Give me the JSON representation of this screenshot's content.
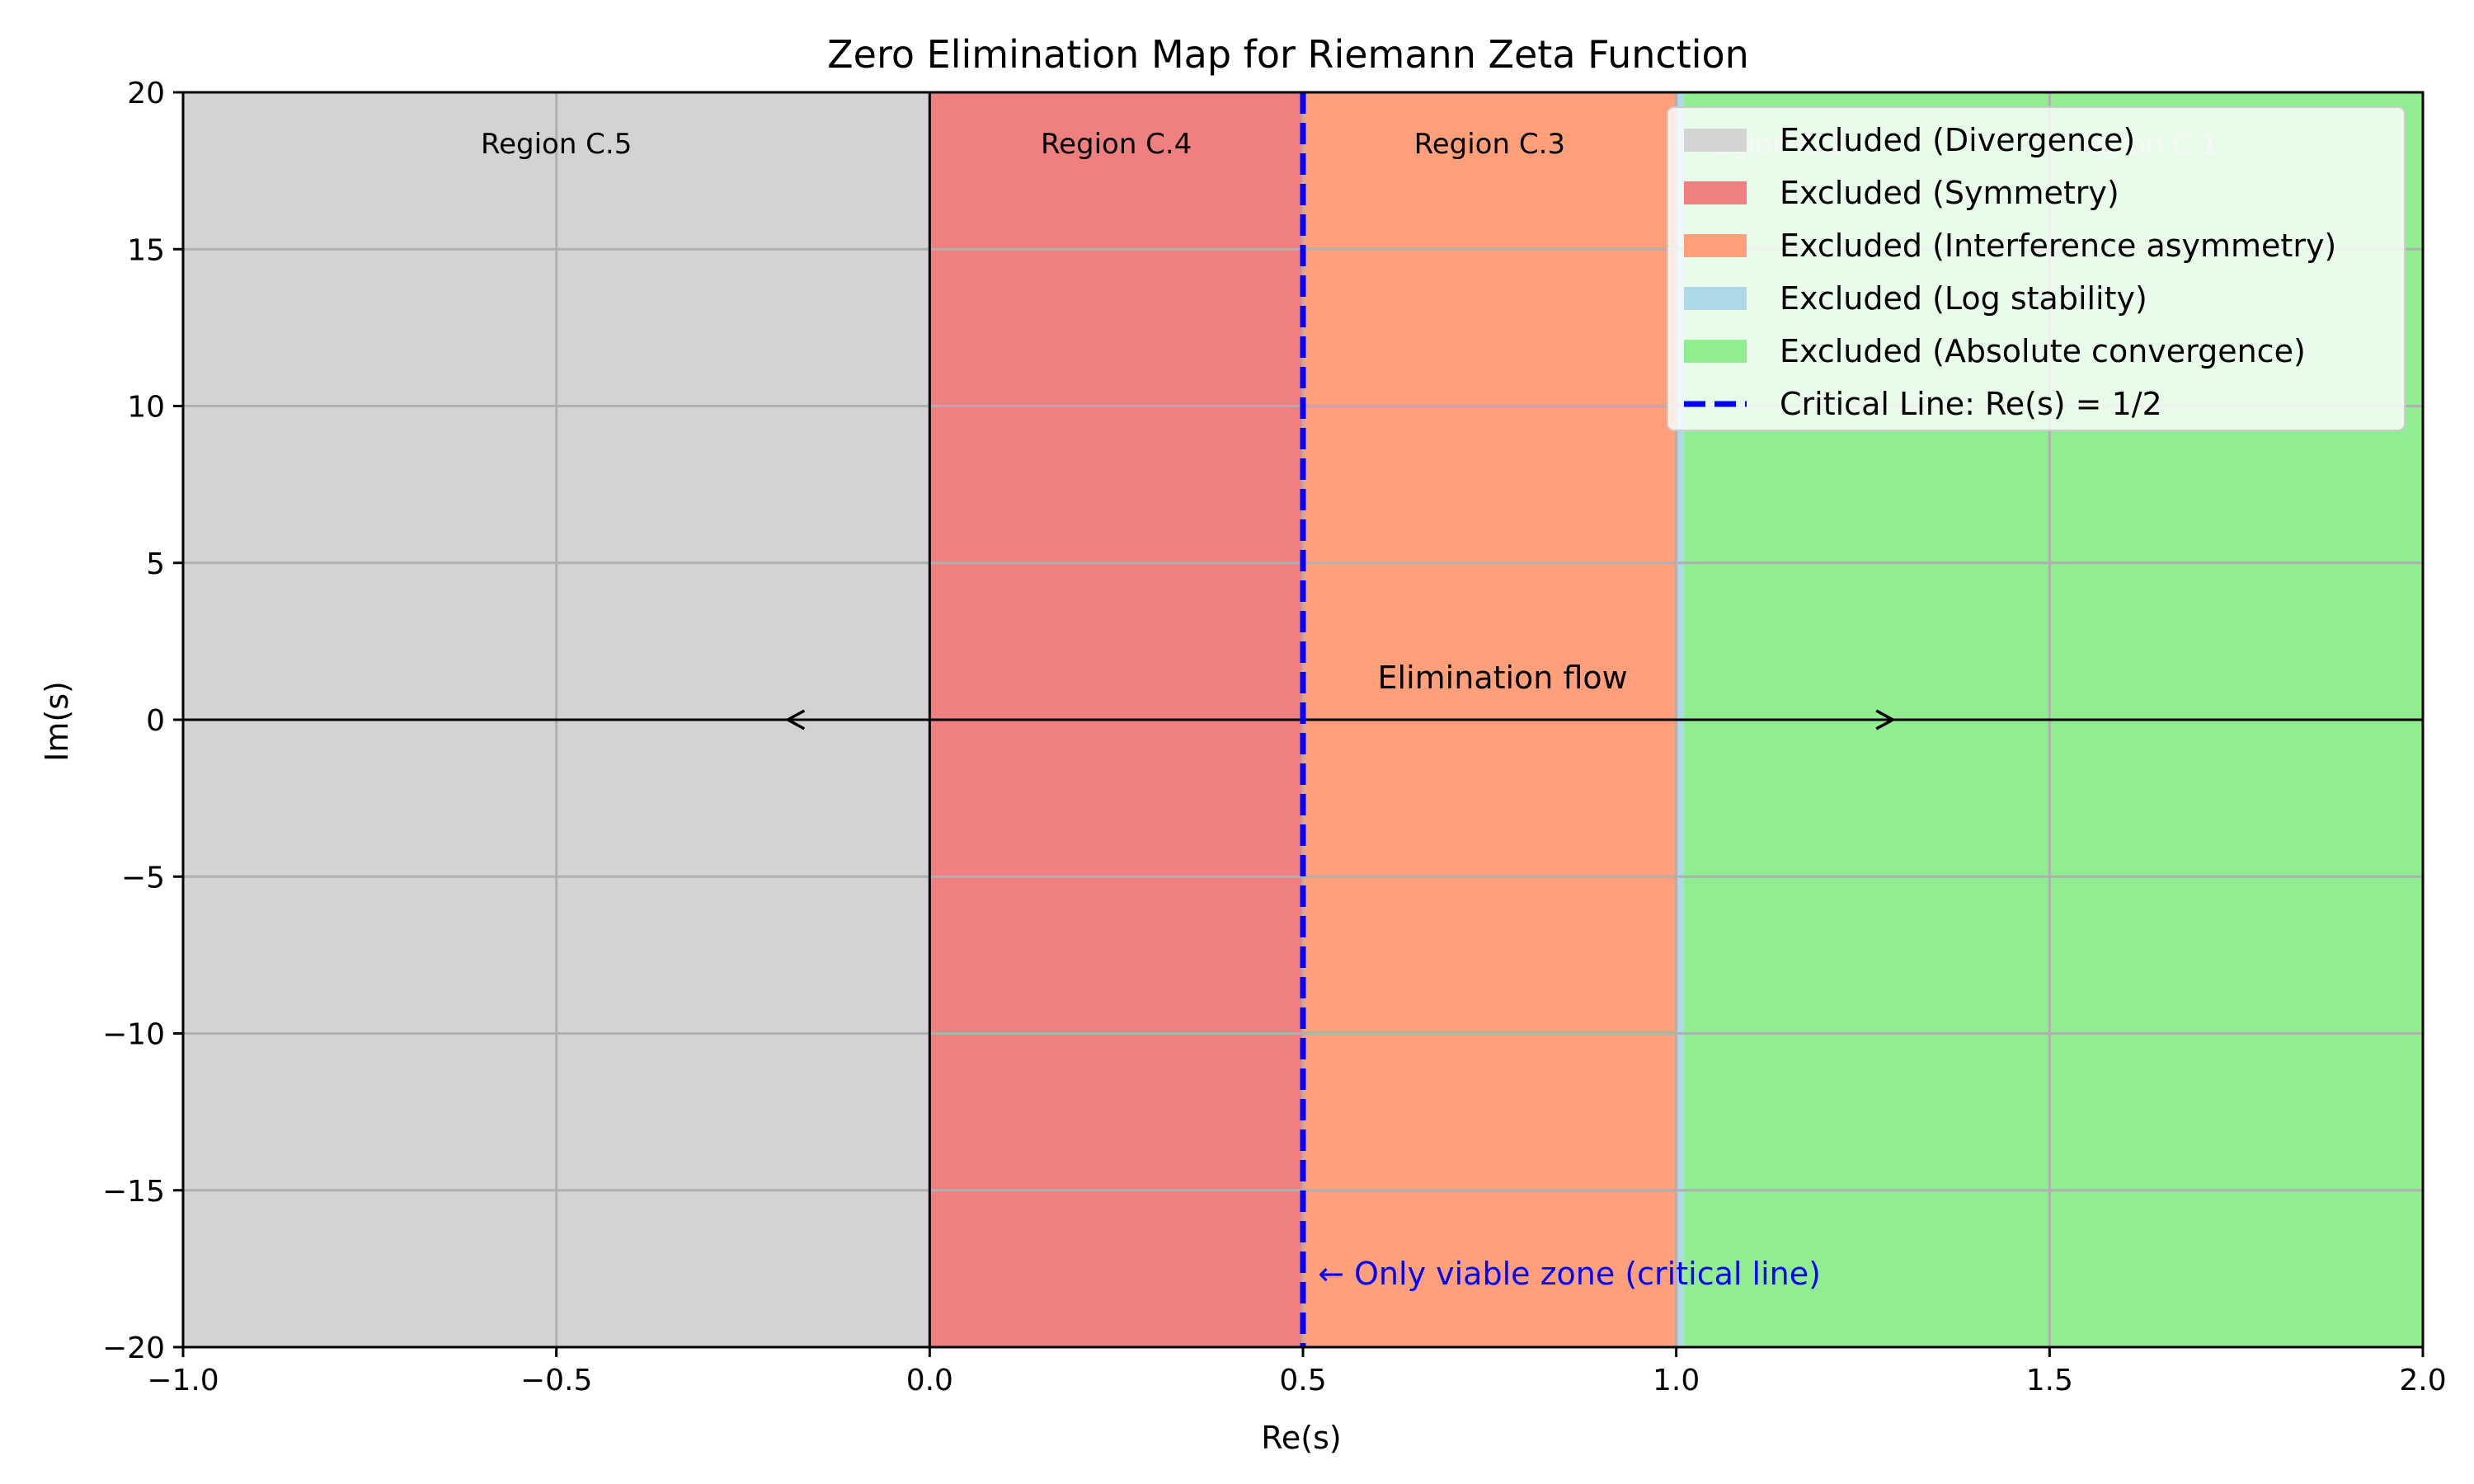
{
  "chart_data": {
    "type": "area",
    "title": "Zero Elimination Map for Riemann Zeta Function",
    "xlabel": "Re(s)",
    "ylabel": "Im(s)",
    "xlim": [
      -1.0,
      2.0
    ],
    "ylim": [
      -20,
      20
    ],
    "grid": true,
    "legend_position": "top-right",
    "xticks": [
      {
        "value": -1.0,
        "label": "−1.0"
      },
      {
        "value": -0.5,
        "label": "−0.5"
      },
      {
        "value": 0.0,
        "label": "0.0"
      },
      {
        "value": 0.5,
        "label": "0.5"
      },
      {
        "value": 1.0,
        "label": "1.0"
      },
      {
        "value": 1.5,
        "label": "1.5"
      },
      {
        "value": 2.0,
        "label": "2.0"
      }
    ],
    "yticks": [
      {
        "value": 20,
        "label": "20"
      },
      {
        "value": 15,
        "label": "15"
      },
      {
        "value": 10,
        "label": "10"
      },
      {
        "value": 5,
        "label": "5"
      },
      {
        "value": 0,
        "label": "0"
      },
      {
        "value": -5,
        "label": "−5"
      },
      {
        "value": -10,
        "label": "−10"
      },
      {
        "value": -15,
        "label": "−15"
      },
      {
        "value": -20,
        "label": "−20"
      }
    ],
    "regions": [
      {
        "name": "Excluded (Divergence)",
        "label": "Region C.5",
        "x_start": -1.0,
        "x_end": 0.0,
        "color": "#d3d3d3"
      },
      {
        "name": "Excluded (Symmetry)",
        "label": "Region C.4",
        "x_start": 0.0,
        "x_end": 0.5,
        "color": "#f08080"
      },
      {
        "name": "Excluded (Interference asymmetry)",
        "label": "Region C.3",
        "x_start": 0.5,
        "x_end": 1.0,
        "color": "#ffa07a"
      },
      {
        "name": "Excluded (Log stability)",
        "label": "Region C.2",
        "x_start": 1.0,
        "x_end": 1.01,
        "color": "#add8e6"
      },
      {
        "name": "Excluded (Absolute convergence)",
        "label": "Region C.1",
        "x_start": 1.01,
        "x_end": 2.0,
        "color": "#90ee90"
      }
    ],
    "critical_line": {
      "name": "Critical Line: Re(s) = 1/2",
      "x": 0.5,
      "color": "#0000ff"
    },
    "reference_lines": {
      "x": 0.0,
      "y": 0.0,
      "color": "#000000"
    },
    "annotations": [
      {
        "text": "Elimination flow",
        "x": 0.6,
        "y": 1.0
      },
      {
        "text": "← Only viable zone (critical line)",
        "x": 0.52,
        "y": -18.0,
        "color": "#0000ff"
      }
    ],
    "arrows": [
      {
        "from": [
          0.4,
          0
        ],
        "to": [
          -0.19,
          0
        ]
      },
      {
        "from": [
          0.6,
          0
        ],
        "to": [
          1.29,
          0
        ]
      }
    ]
  }
}
